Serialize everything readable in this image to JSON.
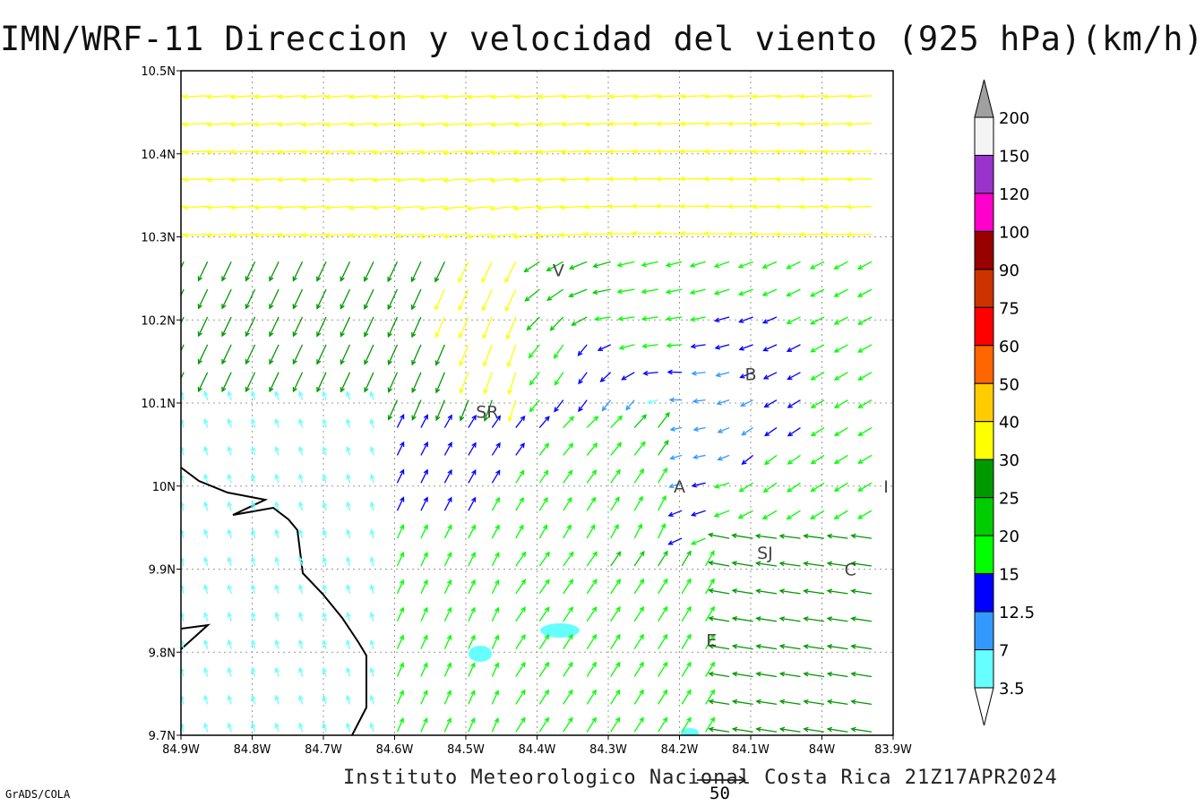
{
  "title": "IMN/WRF-11 Direccion y velocidad del viento (925 hPa)(km/h)",
  "footer": "Instituto Meteorologico Nacional Costa Rica 21Z17APR2024",
  "credit": "GrADS/COLA",
  "reference_vector": {
    "value": "50"
  },
  "axes": {
    "lon_ticks": [
      "84.9W",
      "84.8W",
      "84.7W",
      "84.6W",
      "84.5W",
      "84.4W",
      "84.3W",
      "84.2W",
      "84.1W",
      "84W",
      "83.9W"
    ],
    "lat_ticks": [
      "10.5N",
      "10.4N",
      "10.3N",
      "10.2N",
      "10.1N",
      "10N",
      "9.9N",
      "9.8N",
      "9.7N"
    ],
    "lon_range": [
      -84.9,
      -83.9
    ],
    "lat_range": [
      9.7,
      10.5
    ],
    "grid": "dotted"
  },
  "towns": [
    {
      "label": "V",
      "lon": -84.37,
      "lat": 10.26
    },
    {
      "label": "B",
      "lon": -84.1,
      "lat": 10.135
    },
    {
      "label": "SR",
      "lon": -84.47,
      "lat": 10.09
    },
    {
      "label": "A",
      "lon": -84.2,
      "lat": 10.0
    },
    {
      "label": "I",
      "lon": -83.91,
      "lat": 10.0
    },
    {
      "label": "SJ",
      "lon": -84.08,
      "lat": 9.92
    },
    {
      "label": "C",
      "lon": -83.96,
      "lat": 9.9
    },
    {
      "label": "E",
      "lon": -84.155,
      "lat": 9.815
    }
  ],
  "colorbar": {
    "labels": [
      "3.5",
      "7",
      "12.5",
      "15",
      "20",
      "25",
      "30",
      "40",
      "50",
      "60",
      "75",
      "90",
      "100",
      "120",
      "150",
      "200"
    ],
    "colors": [
      "#66ffff",
      "#3399ff",
      "#0000ff",
      "#00ff00",
      "#00cc00",
      "#009900",
      "#ffff00",
      "#ffcc00",
      "#ff6600",
      "#ff0000",
      "#cc3300",
      "#990000",
      "#ff00cc",
      "#9933cc",
      "#f4f4f4"
    ],
    "top_color": "#a0a0a0"
  }
}
